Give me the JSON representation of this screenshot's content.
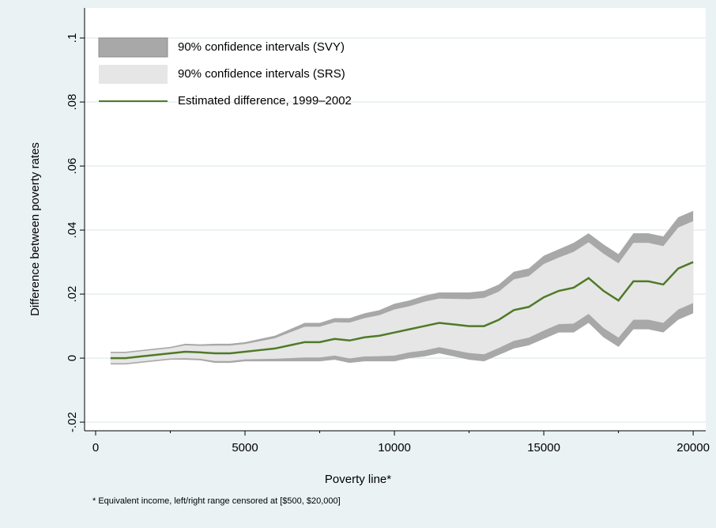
{
  "chart_data": {
    "type": "band-line",
    "y_label": "Difference between poverty rates",
    "x_label": "Poverty line*",
    "note": "* Equivalent income, left/right range censored at [$500, $20,000]",
    "xlim": [
      -370,
      20420
    ],
    "ylim": [
      -0.0227,
      0.1094
    ],
    "xticks": [
      0,
      5000,
      10000,
      15000,
      20000
    ],
    "xminorticks": [
      2500,
      7500,
      12500,
      17500
    ],
    "yticks": [
      {
        "value": -0.02,
        "label": "-.02"
      },
      0,
      {
        "value": 0.02,
        "label": ".02"
      },
      {
        "value": 0.04,
        "label": ".04"
      },
      {
        "value": 0.06,
        "label": ".06"
      },
      {
        "value": 0.08,
        "label": ".08"
      },
      {
        "value": 0.1,
        "label": ".1"
      }
    ],
    "grid": true,
    "legend": "top-left",
    "x": [
      500,
      1000,
      1500,
      2000,
      2500,
      3000,
      3500,
      4000,
      4500,
      5000,
      5500,
      6000,
      6500,
      7000,
      7500,
      8000,
      8500,
      9000,
      9500,
      10000,
      10500,
      11000,
      11500,
      12000,
      12500,
      13000,
      13500,
      14000,
      14500,
      15000,
      15500,
      16000,
      16500,
      17000,
      17500,
      18000,
      18500,
      19000,
      19500,
      20000
    ],
    "series": [
      {
        "name": "90% confidence intervals (SVY)",
        "color": "#a8a8a8",
        "kind": "band",
        "upper": [
          0.002,
          0.002,
          0.0025,
          0.003,
          0.0035,
          0.0045,
          0.0043,
          0.0045,
          0.0045,
          0.005,
          0.006,
          0.007,
          0.009,
          0.011,
          0.011,
          0.0125,
          0.0125,
          0.014,
          0.015,
          0.017,
          0.018,
          0.0195,
          0.0205,
          0.0205,
          0.0205,
          0.021,
          0.023,
          0.027,
          0.028,
          0.032,
          0.034,
          0.036,
          0.039,
          0.0355,
          0.0325,
          0.039,
          0.039,
          0.038,
          0.044,
          0.046
        ],
        "lower": [
          -0.002,
          -0.002,
          -0.0015,
          -0.001,
          -0.0005,
          -0.0005,
          -0.0007,
          -0.0015,
          -0.0015,
          -0.001,
          -0.001,
          -0.001,
          -0.001,
          -0.001,
          -0.001,
          -0.0005,
          -0.0015,
          -0.001,
          -0.001,
          -0.001,
          0,
          0.0005,
          0.0015,
          0.0005,
          -0.0005,
          -0.001,
          0.001,
          0.003,
          0.004,
          0.006,
          0.008,
          0.008,
          0.011,
          0.0065,
          0.0035,
          0.009,
          0.009,
          0.008,
          0.012,
          0.014
        ]
      },
      {
        "name": "90% confidence intervals (SRS)",
        "color": "#e6e6e6",
        "kind": "band",
        "upper": [
          0.0016,
          0.0016,
          0.0021,
          0.0026,
          0.0031,
          0.004,
          0.0038,
          0.0039,
          0.0039,
          0.0044,
          0.0053,
          0.0062,
          0.008,
          0.0098,
          0.0098,
          0.0112,
          0.0111,
          0.0125,
          0.0134,
          0.0152,
          0.0162,
          0.0176,
          0.0186,
          0.0185,
          0.0184,
          0.0188,
          0.0208,
          0.0246,
          0.0256,
          0.0294,
          0.0314,
          0.0332,
          0.0362,
          0.0326,
          0.0296,
          0.036,
          0.036,
          0.035,
          0.0408,
          0.0428
        ],
        "lower": [
          -0.0016,
          -0.0016,
          -0.0011,
          -0.0006,
          -0.0001,
          0,
          -0.0002,
          -0.0009,
          -0.0009,
          -0.0004,
          -0.0003,
          -0.0002,
          0,
          0.0002,
          0.0002,
          0.0008,
          -0.0001,
          0.0005,
          0.0006,
          0.0008,
          0.0018,
          0.0024,
          0.0034,
          0.0025,
          0.0016,
          0.0012,
          0.0032,
          0.0054,
          0.0064,
          0.0086,
          0.0106,
          0.0108,
          0.0138,
          0.0094,
          0.0064,
          0.012,
          0.012,
          0.011,
          0.0152,
          0.0172
        ]
      },
      {
        "name": "Estimated difference, 1999–2002",
        "color": "#4f7a28",
        "kind": "line",
        "values": [
          0,
          0,
          0.0005,
          0.001,
          0.0015,
          0.002,
          0.0018,
          0.0015,
          0.0015,
          0.002,
          0.0025,
          0.003,
          0.004,
          0.005,
          0.005,
          0.006,
          0.0055,
          0.0065,
          0.007,
          0.008,
          0.009,
          0.01,
          0.011,
          0.0105,
          0.01,
          0.01,
          0.012,
          0.015,
          0.016,
          0.019,
          0.021,
          0.022,
          0.025,
          0.021,
          0.018,
          0.024,
          0.024,
          0.023,
          0.028,
          0.03
        ]
      }
    ]
  }
}
